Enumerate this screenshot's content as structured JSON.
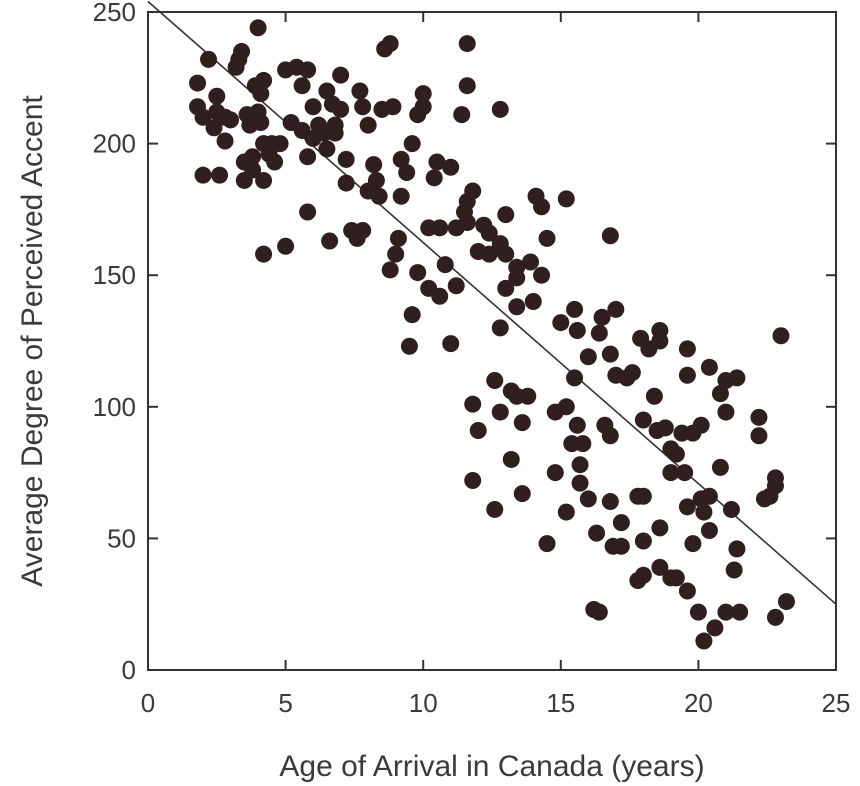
{
  "chart_data": {
    "type": "scatter",
    "title": "",
    "xlabel": "Age of Arrival in Canada (years)",
    "ylabel": "Average Degree of Perceived Accent",
    "xlim": [
      0,
      25
    ],
    "ylim": [
      0,
      250
    ],
    "x_ticks": [
      0,
      5,
      10,
      15,
      20,
      25
    ],
    "x_tick_labels": [
      "0",
      "5",
      "10",
      "15",
      "20",
      "25"
    ],
    "y_ticks": [
      0,
      50,
      100,
      150,
      200,
      250
    ],
    "y_tick_labels": [
      "0",
      "50",
      "100",
      "150",
      "200",
      "250"
    ],
    "grid": false,
    "colors": {
      "points": "#2f1f1f",
      "axes": "#333333",
      "text": "#3a3a3a"
    },
    "regression_line": {
      "x": [
        0,
        25
      ],
      "y": [
        254,
        25
      ]
    },
    "points": [
      [
        1.8,
        223
      ],
      [
        1.8,
        214
      ],
      [
        2.0,
        188
      ],
      [
        2.0,
        210
      ],
      [
        2.2,
        232
      ],
      [
        2.4,
        206
      ],
      [
        2.5,
        212
      ],
      [
        2.6,
        188
      ],
      [
        2.5,
        218
      ],
      [
        2.8,
        201
      ],
      [
        2.8,
        210
      ],
      [
        3.0,
        209
      ],
      [
        3.2,
        229
      ],
      [
        3.3,
        232
      ],
      [
        3.4,
        235
      ],
      [
        3.5,
        186
      ],
      [
        3.5,
        193
      ],
      [
        3.6,
        211
      ],
      [
        3.7,
        207
      ],
      [
        3.8,
        195
      ],
      [
        3.8,
        190
      ],
      [
        4.0,
        244
      ],
      [
        3.9,
        222
      ],
      [
        4.1,
        219
      ],
      [
        4.2,
        224
      ],
      [
        4.0,
        212
      ],
      [
        4.1,
        208
      ],
      [
        4.2,
        200
      ],
      [
        4.2,
        186
      ],
      [
        4.2,
        158
      ],
      [
        4.4,
        196
      ],
      [
        4.5,
        200
      ],
      [
        4.6,
        193
      ],
      [
        4.8,
        200
      ],
      [
        5.0,
        161
      ],
      [
        5.0,
        228
      ],
      [
        5.2,
        208
      ],
      [
        5.4,
        229
      ],
      [
        5.6,
        205
      ],
      [
        5.6,
        222
      ],
      [
        5.8,
        228
      ],
      [
        5.8,
        195
      ],
      [
        5.8,
        174
      ],
      [
        6.0,
        214
      ],
      [
        6.2,
        207
      ],
      [
        6.0,
        202
      ],
      [
        6.4,
        204
      ],
      [
        6.5,
        198
      ],
      [
        6.7,
        215
      ],
      [
        6.5,
        220
      ],
      [
        6.8,
        204
      ],
      [
        6.8,
        207
      ],
      [
        7.0,
        226
      ],
      [
        7.0,
        213
      ],
      [
        7.2,
        194
      ],
      [
        7.2,
        185
      ],
      [
        6.6,
        163
      ],
      [
        7.4,
        167
      ],
      [
        7.6,
        164
      ],
      [
        7.8,
        167
      ],
      [
        7.7,
        220
      ],
      [
        7.8,
        214
      ],
      [
        8.0,
        207
      ],
      [
        8.0,
        182
      ],
      [
        8.2,
        192
      ],
      [
        8.3,
        186
      ],
      [
        8.4,
        180
      ],
      [
        8.5,
        213
      ],
      [
        8.6,
        236
      ],
      [
        8.8,
        238
      ],
      [
        8.9,
        214
      ],
      [
        8.8,
        152
      ],
      [
        9.0,
        158
      ],
      [
        9.1,
        164
      ],
      [
        9.2,
        194
      ],
      [
        9.2,
        180
      ],
      [
        9.4,
        189
      ],
      [
        9.5,
        123
      ],
      [
        9.6,
        135
      ],
      [
        9.6,
        200
      ],
      [
        9.8,
        211
      ],
      [
        9.8,
        151
      ],
      [
        10.0,
        214
      ],
      [
        10.0,
        219
      ],
      [
        10.2,
        168
      ],
      [
        10.2,
        145
      ],
      [
        10.4,
        187
      ],
      [
        10.5,
        193
      ],
      [
        10.6,
        168
      ],
      [
        10.6,
        142
      ],
      [
        10.8,
        154
      ],
      [
        11.0,
        191
      ],
      [
        11.0,
        124
      ],
      [
        11.2,
        146
      ],
      [
        11.2,
        168
      ],
      [
        11.4,
        211
      ],
      [
        11.5,
        174
      ],
      [
        11.6,
        170
      ],
      [
        11.6,
        178
      ],
      [
        11.6,
        238
      ],
      [
        11.6,
        222
      ],
      [
        11.8,
        182
      ],
      [
        11.8,
        101
      ],
      [
        11.8,
        72
      ],
      [
        12.0,
        159
      ],
      [
        12.0,
        91
      ],
      [
        12.2,
        169
      ],
      [
        12.4,
        166
      ],
      [
        12.4,
        158
      ],
      [
        12.6,
        110
      ],
      [
        12.8,
        162
      ],
      [
        12.8,
        130
      ],
      [
        12.8,
        213
      ],
      [
        12.8,
        98
      ],
      [
        12.6,
        61
      ],
      [
        13.0,
        158
      ],
      [
        13.0,
        173
      ],
      [
        13.0,
        145
      ],
      [
        13.2,
        106
      ],
      [
        13.2,
        80
      ],
      [
        13.4,
        153
      ],
      [
        13.4,
        149
      ],
      [
        13.4,
        138
      ],
      [
        13.4,
        104
      ],
      [
        13.6,
        94
      ],
      [
        13.6,
        67
      ],
      [
        13.8,
        104
      ],
      [
        13.9,
        155
      ],
      [
        14.0,
        140
      ],
      [
        14.1,
        180
      ],
      [
        14.3,
        176
      ],
      [
        14.3,
        150
      ],
      [
        14.5,
        164
      ],
      [
        14.5,
        48
      ],
      [
        14.8,
        75
      ],
      [
        14.8,
        98
      ],
      [
        15.0,
        132
      ],
      [
        15.2,
        179
      ],
      [
        15.2,
        100
      ],
      [
        15.2,
        60
      ],
      [
        15.4,
        86
      ],
      [
        15.5,
        137
      ],
      [
        15.5,
        111
      ],
      [
        15.6,
        93
      ],
      [
        15.6,
        129
      ],
      [
        15.7,
        71
      ],
      [
        15.7,
        78
      ],
      [
        15.8,
        86
      ],
      [
        16.0,
        119
      ],
      [
        16.0,
        65
      ],
      [
        16.2,
        23
      ],
      [
        16.3,
        52
      ],
      [
        16.4,
        22
      ],
      [
        16.4,
        128
      ],
      [
        16.5,
        134
      ],
      [
        16.6,
        93
      ],
      [
        16.8,
        165
      ],
      [
        16.8,
        120
      ],
      [
        16.8,
        89
      ],
      [
        16.8,
        64
      ],
      [
        16.9,
        47
      ],
      [
        17.0,
        137
      ],
      [
        17.0,
        112
      ],
      [
        17.2,
        56
      ],
      [
        17.2,
        47
      ],
      [
        17.4,
        111
      ],
      [
        17.6,
        113
      ],
      [
        17.8,
        66
      ],
      [
        17.8,
        34
      ],
      [
        17.9,
        126
      ],
      [
        18.0,
        95
      ],
      [
        18.0,
        66
      ],
      [
        18.0,
        49
      ],
      [
        18.0,
        36
      ],
      [
        18.2,
        122
      ],
      [
        18.4,
        104
      ],
      [
        18.5,
        91
      ],
      [
        18.6,
        129
      ],
      [
        18.6,
        125
      ],
      [
        18.6,
        54
      ],
      [
        18.6,
        39
      ],
      [
        18.8,
        92
      ],
      [
        19.0,
        75
      ],
      [
        19.0,
        84
      ],
      [
        19.0,
        35
      ],
      [
        19.2,
        82
      ],
      [
        19.2,
        35
      ],
      [
        19.4,
        90
      ],
      [
        19.5,
        75
      ],
      [
        19.6,
        122
      ],
      [
        19.6,
        112
      ],
      [
        19.6,
        62
      ],
      [
        19.6,
        30
      ],
      [
        19.8,
        48
      ],
      [
        19.8,
        90
      ],
      [
        20.0,
        22
      ],
      [
        20.1,
        93
      ],
      [
        20.1,
        65
      ],
      [
        20.2,
        60
      ],
      [
        20.2,
        11
      ],
      [
        20.4,
        115
      ],
      [
        20.4,
        66
      ],
      [
        20.4,
        53
      ],
      [
        20.6,
        16
      ],
      [
        20.8,
        77
      ],
      [
        20.8,
        105
      ],
      [
        21.0,
        110
      ],
      [
        21.0,
        98
      ],
      [
        21.0,
        22
      ],
      [
        21.2,
        61
      ],
      [
        21.4,
        111
      ],
      [
        21.4,
        46
      ],
      [
        21.3,
        38
      ],
      [
        21.5,
        22
      ],
      [
        22.2,
        96
      ],
      [
        22.2,
        89
      ],
      [
        22.4,
        65
      ],
      [
        22.6,
        66
      ],
      [
        22.8,
        70
      ],
      [
        22.8,
        73
      ],
      [
        22.8,
        20
      ],
      [
        23.0,
        127
      ],
      [
        23.2,
        26
      ]
    ]
  }
}
